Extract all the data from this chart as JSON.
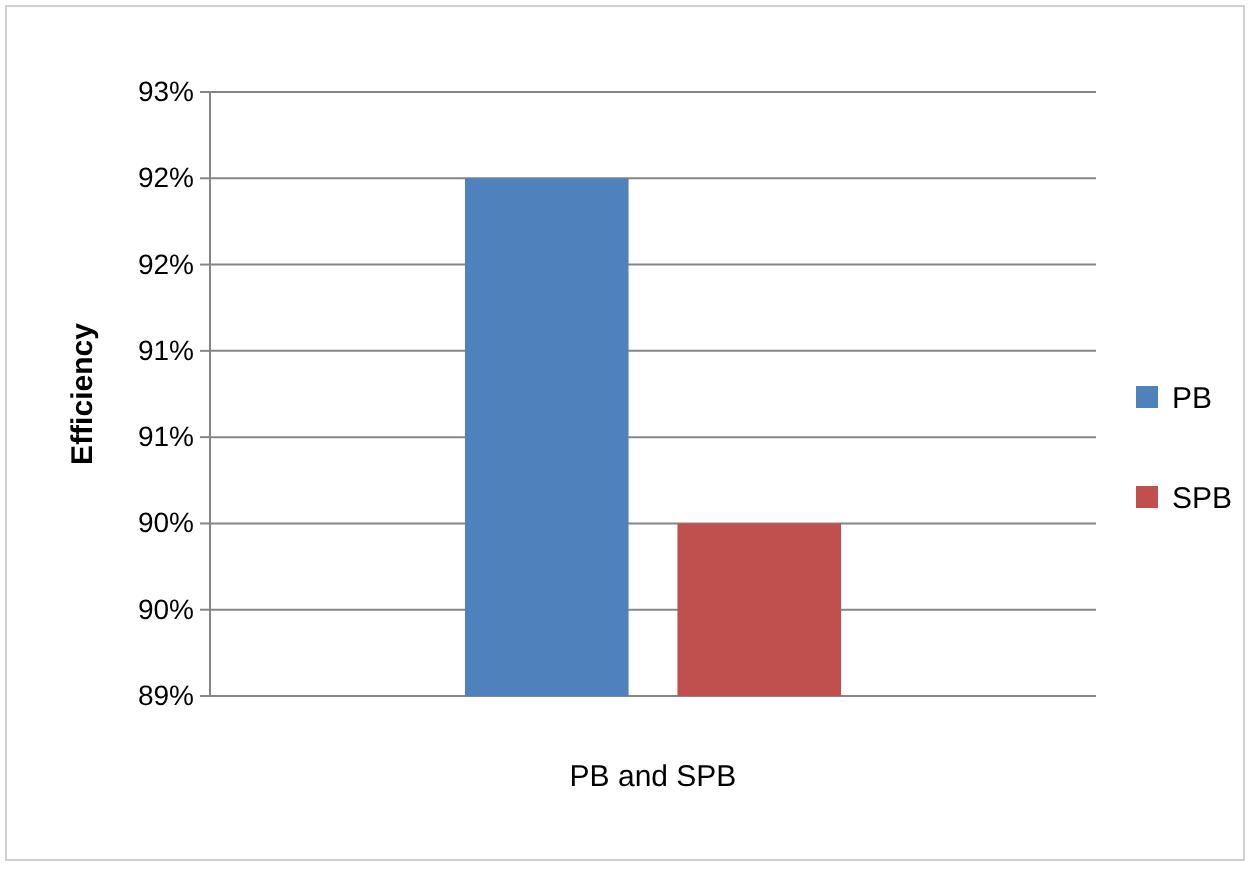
{
  "chart_data": {
    "type": "bar",
    "xlabel": "PB and SPB",
    "ylabel": "Efficiency",
    "categories": [
      null
    ],
    "series": [
      {
        "name": "PB",
        "color": "#4f81bd",
        "values": [
          92
        ]
      },
      {
        "name": "SPB",
        "color": "#c0504d",
        "values": [
          90
        ]
      }
    ],
    "ylim": [
      89,
      92.5
    ],
    "yticks": [
      {
        "value": 89,
        "label": "89%"
      },
      {
        "value": 89.5,
        "label": "90%"
      },
      {
        "value": 90,
        "label": "90%"
      },
      {
        "value": 90.5,
        "label": "91%"
      },
      {
        "value": 91,
        "label": "91%"
      },
      {
        "value": 91.5,
        "label": "92%"
      },
      {
        "value": 92,
        "label": "92%"
      },
      {
        "value": 92.5,
        "label": "93%"
      }
    ],
    "grid": "y",
    "legend": "right"
  }
}
